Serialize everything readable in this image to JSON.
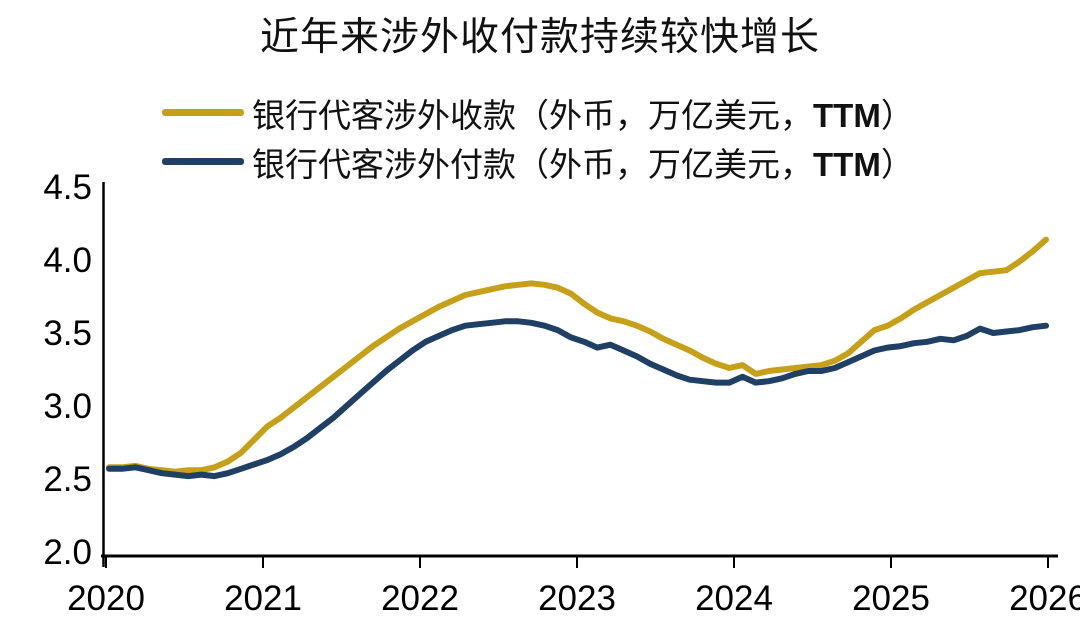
{
  "title": "近年来涉外收付款持续较快增长",
  "legend": [
    {
      "label_prefix": "银行代客涉外收款（外币，万亿美元，",
      "label_bold": "TTM",
      "label_suffix": "）",
      "color": "#C7A019"
    },
    {
      "label_prefix": "银行代客涉外付款（外币，万亿美元，",
      "label_bold": "TTM",
      "label_suffix": "）",
      "color": "#1F4064"
    }
  ],
  "chart_data": {
    "type": "line",
    "title": "近年来涉外收付款持续较快增长",
    "x_start": "2020-01",
    "x_end": "2025-12",
    "freq": "monthly",
    "x_tick_labels": [
      "2020",
      "2021",
      "2022",
      "2023",
      "2024",
      "2025",
      "2026"
    ],
    "y_tick_labels": [
      "2.0",
      "2.5",
      "3.0",
      "3.5",
      "4.0",
      "4.5"
    ],
    "ylim": [
      2.0,
      4.5
    ],
    "grid": false,
    "legend_position": "top-left",
    "axis_color": "#000000",
    "series": [
      {
        "name": "银行代客涉外收款（外币，万亿美元，TTM）",
        "color": "#C7A019",
        "values": [
          2.58,
          2.58,
          2.59,
          2.57,
          2.56,
          2.55,
          2.56,
          2.56,
          2.58,
          2.62,
          2.68,
          2.77,
          2.86,
          2.92,
          2.99,
          3.06,
          3.13,
          3.2,
          3.27,
          3.34,
          3.41,
          3.47,
          3.53,
          3.58,
          3.63,
          3.68,
          3.72,
          3.76,
          3.78,
          3.8,
          3.82,
          3.83,
          3.84,
          3.83,
          3.81,
          3.77,
          3.7,
          3.64,
          3.6,
          3.58,
          3.55,
          3.51,
          3.46,
          3.42,
          3.38,
          3.33,
          3.29,
          3.26,
          3.28,
          3.22,
          3.24,
          3.25,
          3.26,
          3.27,
          3.28,
          3.31,
          3.36,
          3.44,
          3.52,
          3.55,
          3.6,
          3.66,
          3.71,
          3.76,
          3.81,
          3.86,
          3.91,
          3.92,
          3.93,
          3.99,
          4.06,
          4.14
        ]
      },
      {
        "name": "银行代客涉外付款（外币，万亿美元，TTM）",
        "color": "#1F4064",
        "values": [
          2.57,
          2.57,
          2.58,
          2.56,
          2.54,
          2.53,
          2.52,
          2.53,
          2.52,
          2.54,
          2.57,
          2.6,
          2.63,
          2.67,
          2.72,
          2.78,
          2.85,
          2.92,
          3.0,
          3.08,
          3.16,
          3.24,
          3.31,
          3.38,
          3.44,
          3.48,
          3.52,
          3.55,
          3.56,
          3.57,
          3.58,
          3.58,
          3.57,
          3.55,
          3.52,
          3.47,
          3.44,
          3.4,
          3.42,
          3.38,
          3.34,
          3.29,
          3.25,
          3.21,
          3.18,
          3.17,
          3.16,
          3.16,
          3.2,
          3.16,
          3.17,
          3.19,
          3.22,
          3.24,
          3.24,
          3.26,
          3.3,
          3.34,
          3.38,
          3.4,
          3.41,
          3.43,
          3.44,
          3.46,
          3.45,
          3.48,
          3.53,
          3.5,
          3.51,
          3.52,
          3.54,
          3.55
        ]
      }
    ]
  }
}
